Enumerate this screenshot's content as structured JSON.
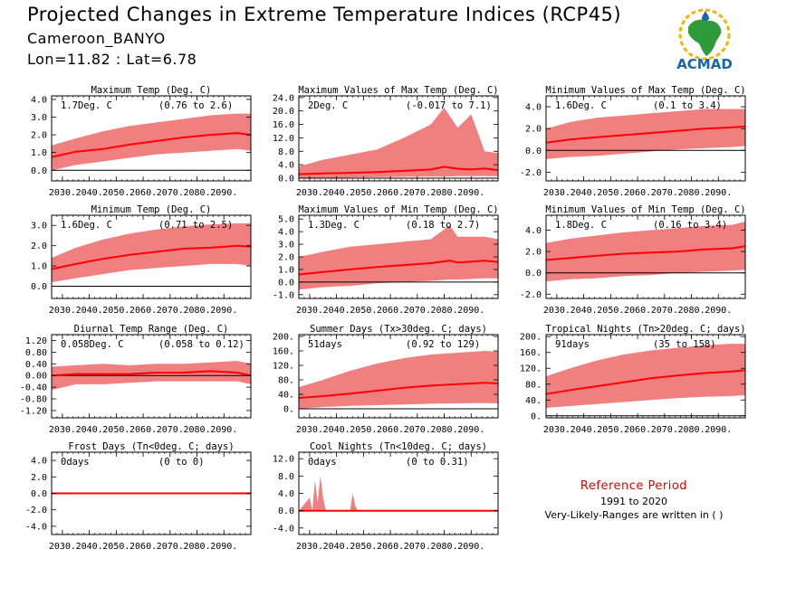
{
  "header": {
    "title": "Projected Changes in Extreme Temperature Indices (RCP45)",
    "location": "Cameroon_BANYO",
    "coords": "Lon=11.82 : Lat=6.78"
  },
  "logo": {
    "text": "ACMAD",
    "icon": "africa-map-icon"
  },
  "legend": {
    "title": "Reference Period",
    "years": "1991 to 2020",
    "note": "Very-Likely-Ranges are written in ( )"
  },
  "colors": {
    "band": "#f08080",
    "line": "#ff0000",
    "frame": "#000000",
    "zero": "#000000",
    "ref_title": "#e00000"
  },
  "chart_data": [
    {
      "type": "area",
      "title": "Maximum Temp (Deg. C)",
      "change": "1.7Deg. C",
      "range": "(0.76 to 2.6)",
      "xlim": [
        2026,
        2100
      ],
      "ylim": [
        -0.6,
        4.2
      ],
      "yticks": [
        "0.0",
        "1.0",
        "2.0",
        "3.0",
        "4.0"
      ],
      "xticks": [
        "2030.",
        "2040.",
        "2050.",
        "2060.",
        "2070.",
        "2080.",
        "2090."
      ],
      "x": [
        2026,
        2035,
        2045,
        2055,
        2065,
        2075,
        2085,
        2095,
        2100
      ],
      "series": [
        {
          "role": "median",
          "values": [
            0.75,
            1.05,
            1.2,
            1.45,
            1.65,
            1.85,
            2.0,
            2.1,
            2.0
          ]
        },
        {
          "role": "upper",
          "values": [
            1.4,
            1.8,
            2.2,
            2.5,
            2.7,
            2.9,
            3.1,
            3.2,
            3.2
          ]
        },
        {
          "role": "lower",
          "values": [
            0.0,
            0.3,
            0.5,
            0.7,
            0.9,
            1.0,
            1.1,
            1.2,
            1.1
          ]
        }
      ]
    },
    {
      "type": "area",
      "title": "Maximum Values of Max Temp (Deg. C)",
      "change": "2Deg. C",
      "range": "(-0.017 to 7.1)",
      "xlim": [
        2026,
        2100
      ],
      "ylim": [
        -0.8,
        24.5
      ],
      "yticks": [
        "0.0",
        "4.0",
        "8.0",
        "12.0",
        "16.0",
        "20.0",
        "24.0"
      ],
      "xticks": [
        "2030.",
        "2040.",
        "2050.",
        "2060.",
        "2070.",
        "2080.",
        "2090."
      ],
      "x": [
        2026,
        2035,
        2045,
        2055,
        2065,
        2075,
        2080,
        2085,
        2090,
        2095,
        2100
      ],
      "series": [
        {
          "role": "median",
          "values": [
            1.2,
            1.4,
            1.6,
            1.8,
            2.2,
            2.6,
            3.4,
            2.8,
            2.6,
            2.9,
            2.4
          ]
        },
        {
          "role": "upper",
          "values": [
            3.5,
            5.5,
            7.0,
            8.5,
            12.0,
            16.0,
            21.0,
            15.0,
            19.0,
            8.0,
            7.5
          ]
        },
        {
          "role": "lower",
          "values": [
            0.0,
            0.1,
            0.2,
            0.3,
            0.4,
            0.5,
            0.5,
            0.6,
            0.6,
            0.6,
            0.6
          ]
        }
      ]
    },
    {
      "type": "area",
      "title": "Minimum Values of Max Temp (Deg. C)",
      "change": "1.6Deg. C",
      "range": "(0.1 to 3.4)",
      "xlim": [
        2026,
        2100
      ],
      "ylim": [
        -2.8,
        5.0
      ],
      "yticks": [
        "-2.0",
        "0.0",
        "2.0",
        "4.0"
      ],
      "xticks": [
        "2030.",
        "2040.",
        "2050.",
        "2060.",
        "2070.",
        "2080.",
        "2090."
      ],
      "x": [
        2026,
        2035,
        2045,
        2055,
        2065,
        2075,
        2085,
        2095,
        2100
      ],
      "series": [
        {
          "role": "median",
          "values": [
            0.7,
            1.0,
            1.2,
            1.4,
            1.6,
            1.8,
            2.0,
            2.1,
            2.2
          ]
        },
        {
          "role": "upper",
          "values": [
            2.0,
            2.6,
            3.0,
            3.2,
            3.4,
            3.6,
            3.8,
            3.8,
            3.8
          ]
        },
        {
          "role": "lower",
          "values": [
            -0.8,
            -0.6,
            -0.5,
            -0.3,
            -0.1,
            0.1,
            0.2,
            0.3,
            0.4
          ]
        }
      ]
    },
    {
      "type": "area",
      "title": "Minimum Temp (Deg. C)",
      "change": "1.6Deg. C",
      "range": "(0.71 to 2.5)",
      "xlim": [
        2026,
        2100
      ],
      "ylim": [
        -0.6,
        3.5
      ],
      "yticks": [
        "0.0",
        "1.0",
        "2.0",
        "3.0"
      ],
      "xticks": [
        "2030.",
        "2040.",
        "2050.",
        "2060.",
        "2070.",
        "2080.",
        "2090."
      ],
      "x": [
        2026,
        2035,
        2045,
        2055,
        2065,
        2075,
        2085,
        2095,
        2100
      ],
      "series": [
        {
          "role": "median",
          "values": [
            0.85,
            1.1,
            1.35,
            1.55,
            1.7,
            1.85,
            1.9,
            2.0,
            1.95
          ]
        },
        {
          "role": "upper",
          "values": [
            1.4,
            1.9,
            2.3,
            2.6,
            2.8,
            2.95,
            3.05,
            3.1,
            3.1
          ]
        },
        {
          "role": "lower",
          "values": [
            0.2,
            0.4,
            0.6,
            0.8,
            0.9,
            1.0,
            1.1,
            1.1,
            1.0
          ]
        }
      ]
    },
    {
      "type": "area",
      "title": "Maximum Values of Min Temp (Deg. C)",
      "change": "1.3Deg. C",
      "range": "(0.18 to 2.7)",
      "xlim": [
        2026,
        2100
      ],
      "ylim": [
        -1.3,
        5.3
      ],
      "yticks": [
        "-1.0",
        "0.0",
        "1.0",
        "2.0",
        "3.0",
        "4.0",
        "5.0"
      ],
      "xticks": [
        "2030.",
        "2040.",
        "2050.",
        "2060.",
        "2070.",
        "2080.",
        "2090."
      ],
      "x": [
        2026,
        2035,
        2045,
        2055,
        2065,
        2075,
        2082,
        2085,
        2095,
        2100
      ],
      "series": [
        {
          "role": "median",
          "values": [
            0.6,
            0.8,
            1.0,
            1.2,
            1.35,
            1.5,
            1.7,
            1.55,
            1.7,
            1.6
          ]
        },
        {
          "role": "upper",
          "values": [
            2.0,
            2.4,
            2.8,
            3.0,
            3.2,
            3.4,
            4.5,
            3.6,
            3.6,
            3.4
          ]
        },
        {
          "role": "lower",
          "values": [
            -0.6,
            -0.4,
            -0.3,
            -0.1,
            0.0,
            0.1,
            0.2,
            0.2,
            0.3,
            0.3
          ]
        }
      ]
    },
    {
      "type": "area",
      "title": "Minimum Values of Min Temp (Deg. C)",
      "change": "1.8Deg. C",
      "range": "(0.16 to 3.4)",
      "xlim": [
        2026,
        2100
      ],
      "ylim": [
        -2.4,
        5.4
      ],
      "yticks": [
        "-2.0",
        "0.0",
        "2.0",
        "4.0"
      ],
      "xticks": [
        "2030.",
        "2040.",
        "2050.",
        "2060.",
        "2070.",
        "2080.",
        "2090."
      ],
      "x": [
        2026,
        2035,
        2045,
        2055,
        2065,
        2075,
        2085,
        2095,
        2100
      ],
      "series": [
        {
          "role": "median",
          "values": [
            1.2,
            1.4,
            1.6,
            1.8,
            1.9,
            2.0,
            2.2,
            2.3,
            2.5
          ]
        },
        {
          "role": "upper",
          "values": [
            2.8,
            3.2,
            3.5,
            3.8,
            4.0,
            4.2,
            4.4,
            4.5,
            4.8
          ]
        },
        {
          "role": "lower",
          "values": [
            -0.8,
            -0.6,
            -0.5,
            -0.3,
            -0.2,
            0.0,
            0.1,
            0.2,
            0.3
          ]
        }
      ]
    },
    {
      "type": "area",
      "title": "Diurnal Temp Range (Deg. C)",
      "change": "0.058Deg. C",
      "range": "(0.058 to 0.12)",
      "xlim": [
        2026,
        2100
      ],
      "ylim": [
        -1.45,
        1.4
      ],
      "yticks": [
        "-1.20",
        "-0.80",
        "-0.40",
        "0.00",
        "0.40",
        "0.80",
        "1.20"
      ],
      "xticks": [
        "2030.",
        "2040.",
        "2050.",
        "2060.",
        "2070.",
        "2080.",
        "2090."
      ],
      "x": [
        2026,
        2035,
        2045,
        2055,
        2065,
        2075,
        2085,
        2095,
        2100
      ],
      "series": [
        {
          "role": "median",
          "values": [
            0.0,
            0.05,
            0.05,
            0.05,
            0.1,
            0.1,
            0.15,
            0.1,
            0.0
          ]
        },
        {
          "role": "upper",
          "values": [
            0.3,
            0.35,
            0.4,
            0.35,
            0.4,
            0.4,
            0.45,
            0.5,
            0.4
          ]
        },
        {
          "role": "lower",
          "values": [
            -0.5,
            -0.3,
            -0.3,
            -0.25,
            -0.2,
            -0.2,
            -0.2,
            -0.2,
            -0.3
          ]
        }
      ]
    },
    {
      "type": "area",
      "title": "Summer Days (Tx>30deg. C; days)",
      "change": "51days",
      "range": "(0.92 to 129)",
      "xlim": [
        2026,
        2100
      ],
      "ylim": [
        -25,
        205
      ],
      "yticks": [
        "0.",
        "40.",
        "80.",
        "120.",
        "160.",
        "200."
      ],
      "xticks": [
        "2030.",
        "2040.",
        "2050.",
        "2060.",
        "2070.",
        "2080.",
        "2090."
      ],
      "x": [
        2026,
        2035,
        2045,
        2055,
        2065,
        2075,
        2085,
        2095,
        2100
      ],
      "series": [
        {
          "role": "median",
          "values": [
            30,
            35,
            42,
            50,
            58,
            64,
            68,
            72,
            70
          ]
        },
        {
          "role": "upper",
          "values": [
            60,
            80,
            105,
            125,
            140,
            150,
            155,
            160,
            158
          ]
        },
        {
          "role": "lower",
          "values": [
            0,
            5,
            8,
            10,
            12,
            14,
            15,
            16,
            15
          ]
        }
      ]
    },
    {
      "type": "area",
      "title": "Tropical Nights (Tn>20deg. C; days)",
      "change": "91days",
      "range": "(35 to 158)",
      "xlim": [
        2026,
        2100
      ],
      "ylim": [
        -5,
        205
      ],
      "yticks": [
        "0.",
        "40.",
        "80.",
        "120.",
        "160.",
        "200."
      ],
      "xticks": [
        "2030.",
        "2040.",
        "2050.",
        "2060.",
        "2070.",
        "2080.",
        "2090."
      ],
      "x": [
        2026,
        2035,
        2045,
        2055,
        2065,
        2075,
        2085,
        2095,
        2100
      ],
      "series": [
        {
          "role": "median",
          "values": [
            55,
            65,
            75,
            85,
            95,
            102,
            108,
            112,
            115
          ]
        },
        {
          "role": "upper",
          "values": [
            100,
            120,
            140,
            155,
            165,
            172,
            178,
            182,
            182
          ]
        },
        {
          "role": "lower",
          "values": [
            20,
            25,
            30,
            35,
            40,
            45,
            48,
            50,
            52
          ]
        }
      ]
    },
    {
      "type": "area",
      "title": "Frost Days (Tn<0deg. C; days)",
      "change": "0days",
      "range": "(0 to 0)",
      "xlim": [
        2026,
        2100
      ],
      "ylim": [
        -5.0,
        5.0
      ],
      "yticks": [
        "-4.0",
        "-2.0",
        "0.0",
        "2.0",
        "4.0"
      ],
      "xticks": [
        "2030.",
        "2040.",
        "2050.",
        "2060.",
        "2070.",
        "2080.",
        "2090."
      ],
      "x": [
        2026,
        2100
      ],
      "series": [
        {
          "role": "median",
          "values": [
            0,
            0
          ]
        },
        {
          "role": "upper",
          "values": [
            0,
            0
          ]
        },
        {
          "role": "lower",
          "values": [
            0,
            0
          ]
        }
      ]
    },
    {
      "type": "area",
      "title": "Cool Nights (Tn<10deg. C; days)",
      "change": "0days",
      "range": "(0 to 0.31)",
      "xlim": [
        2026,
        2100
      ],
      "ylim": [
        -5.5,
        13.5
      ],
      "yticks": [
        "-4.0",
        "0.0",
        "4.0",
        "8.0",
        "12.0"
      ],
      "xticks": [
        "2030.",
        "2040.",
        "2050.",
        "2060.",
        "2070.",
        "2080.",
        "2090."
      ],
      "x": [
        2026,
        2030,
        2031,
        2032,
        2033,
        2034,
        2035,
        2036,
        2045,
        2046,
        2047,
        2048,
        2100
      ],
      "series": [
        {
          "role": "median",
          "values": [
            0,
            0,
            0,
            0,
            0,
            0,
            0,
            0,
            0,
            0,
            0,
            0,
            0
          ]
        },
        {
          "role": "upper",
          "values": [
            0,
            3,
            0,
            7,
            2,
            8,
            3,
            0,
            0,
            4,
            1,
            0,
            0
          ]
        },
        {
          "role": "lower",
          "values": [
            0,
            0,
            0,
            0,
            0,
            0,
            0,
            0,
            0,
            0,
            0,
            0,
            0
          ]
        }
      ]
    }
  ]
}
